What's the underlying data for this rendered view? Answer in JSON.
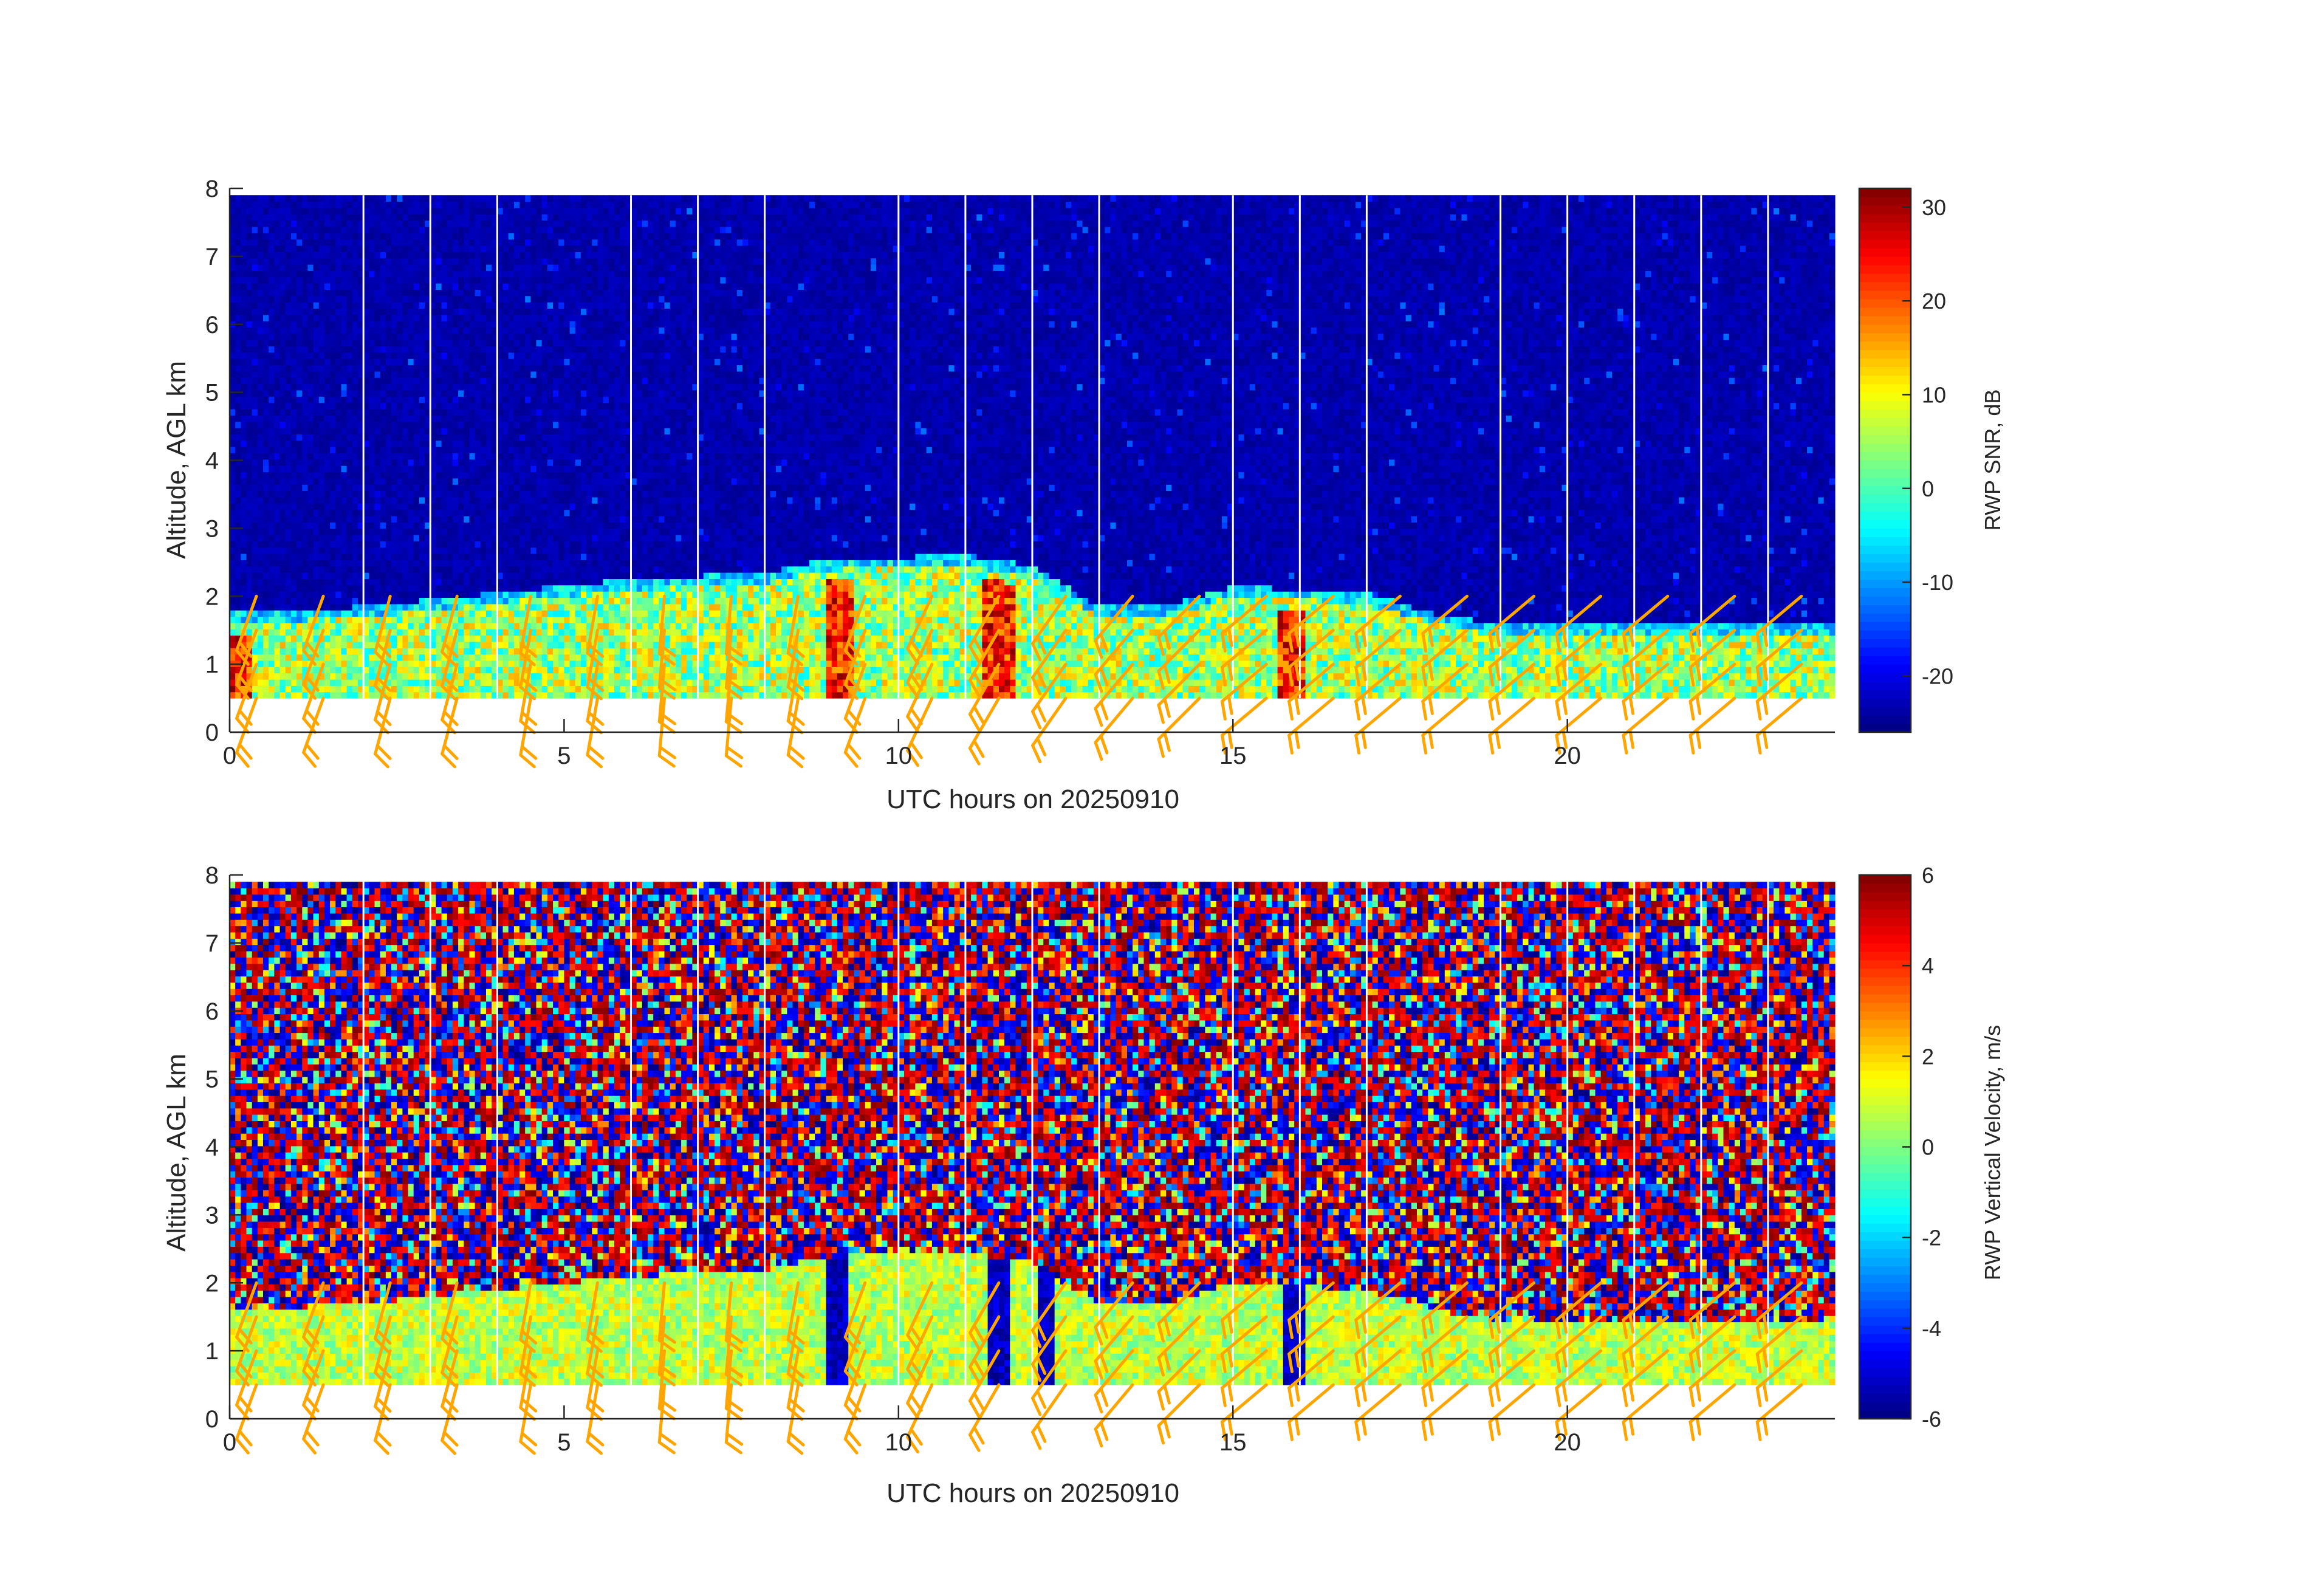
{
  "figure": {
    "colors": {
      "background": "#ffffff",
      "axis": "#262626",
      "missing_data_lines": "#ffffff",
      "wind_barbs": "#ffa500"
    }
  },
  "chart_data": [
    {
      "type": "heatmap",
      "name": "snr",
      "xlabel": "UTC hours on 20250910",
      "ylabel": "Altitude, AGL km",
      "xlim": [
        0,
        24
      ],
      "ylim": [
        0,
        8
      ],
      "x_ticks": [
        0,
        5,
        10,
        15,
        20
      ],
      "y_ticks": [
        0,
        1,
        2,
        3,
        4,
        5,
        6,
        7,
        8
      ],
      "data_altitude_range_km": [
        0.5,
        7.9
      ],
      "colormap": "jet",
      "colorbar": {
        "label": "RWP SNR, dB",
        "range": [
          -26,
          32
        ],
        "ticks": [
          30,
          20,
          10,
          0,
          -10,
          -20
        ]
      },
      "background_value_db": -22,
      "boundary_layer_top_km": [
        {
          "hour": 0,
          "km": 1.6
        },
        {
          "hour": 2,
          "km": 1.7
        },
        {
          "hour": 4,
          "km": 1.9
        },
        {
          "hour": 6,
          "km": 2.1
        },
        {
          "hour": 8,
          "km": 2.2
        },
        {
          "hour": 9,
          "km": 2.4
        },
        {
          "hour": 11,
          "km": 2.45
        },
        {
          "hour": 12,
          "km": 2.3
        },
        {
          "hour": 13,
          "km": 1.7
        },
        {
          "hour": 14,
          "km": 1.7
        },
        {
          "hour": 15,
          "km": 2.0
        },
        {
          "hour": 17,
          "km": 1.9
        },
        {
          "hour": 18,
          "km": 1.6
        },
        {
          "hour": 19,
          "km": 1.45
        },
        {
          "hour": 24,
          "km": 1.45
        }
      ],
      "strong_echo_columns_hours": [
        0.1,
        9.1,
        11.5,
        15.9
      ],
      "missing_data_hours": [
        2,
        3,
        4,
        6,
        7,
        8,
        10,
        11,
        12,
        13,
        15,
        16,
        17,
        19,
        20,
        21,
        22,
        23
      ]
    },
    {
      "type": "heatmap",
      "name": "vertical_velocity",
      "xlabel": "UTC hours on 20250910",
      "ylabel": "Altitude, AGL km",
      "xlim": [
        0,
        24
      ],
      "ylim": [
        0,
        8
      ],
      "x_ticks": [
        0,
        5,
        10,
        15,
        20
      ],
      "y_ticks": [
        0,
        1,
        2,
        3,
        4,
        5,
        6,
        7,
        8
      ],
      "data_altitude_range_km": [
        0.5,
        7.9
      ],
      "colormap": "jet",
      "colorbar": {
        "label": "RWP Vertical Velocity, m/s",
        "range": [
          -6,
          6
        ],
        "ticks": [
          6,
          4,
          2,
          0,
          -2,
          -4,
          -6
        ]
      },
      "boundary_layer_velocity_ms": 0.8,
      "downdraft_columns_hours": [
        9.1,
        11.5,
        12.2,
        15.9
      ],
      "missing_data_hours": [
        2,
        3,
        4,
        6,
        7,
        8,
        10,
        11,
        12,
        13,
        15,
        16,
        17,
        19,
        20,
        21,
        22,
        23
      ]
    }
  ],
  "wind_barbs": {
    "hours": [
      0.4,
      1.4,
      2.4,
      3.4,
      4.5,
      5.5,
      6.5,
      7.5,
      8.5,
      9.5,
      10.5,
      11.5,
      12.5,
      13.5,
      14.5,
      15.5,
      16.5,
      17.5,
      18.5,
      19.5,
      20.5,
      21.5,
      22.5,
      23.5
    ],
    "levels_km": [
      0.5,
      1.0,
      1.5,
      2.0
    ],
    "direction_deg": [
      200,
      200,
      195,
      195,
      190,
      190,
      185,
      185,
      190,
      200,
      205,
      210,
      215,
      220,
      225,
      230,
      230,
      230,
      230,
      230,
      230,
      230,
      230,
      230
    ],
    "speed_kt": [
      20,
      20,
      20,
      20,
      20,
      20,
      20,
      20,
      20,
      20,
      20,
      20,
      20,
      20,
      20,
      20,
      20,
      20,
      20,
      20,
      20,
      20,
      20,
      20
    ]
  }
}
